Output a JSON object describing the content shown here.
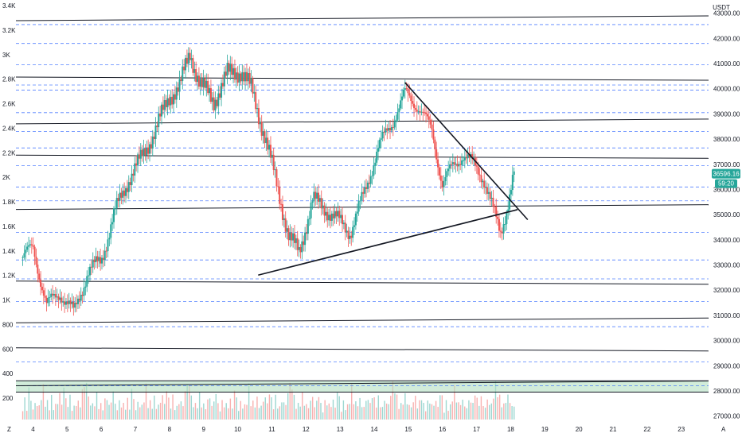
{
  "chart_data": {
    "type": "candlestick",
    "colors": {
      "up": "#26a69a",
      "down": "#ef5350",
      "accent": "#26a69a",
      "grid_dashed": "#2962ff",
      "solid_line": "#131722",
      "zone": "#b2dfc2",
      "axis_text": "#131722"
    },
    "currency_label": "USDT",
    "current_price": "36596.16",
    "countdown": "59:20",
    "left_axis": {
      "ticks": [
        "3.4K",
        "3.2K",
        "3K",
        "2.8K",
        "2.6K",
        "2.4K",
        "2.2K",
        "2K",
        "1.8K",
        "1.6K",
        "1.4K",
        "1.2K",
        "1K",
        "800",
        "600",
        "400",
        "200"
      ]
    },
    "right_axis": {
      "ticks": [
        "43000.00",
        "42000.00",
        "41000.00",
        "40000.00",
        "39000.00",
        "38000.00",
        "37000.00",
        "36000.00",
        "35000.00",
        "34000.00",
        "33000.00",
        "32000.00",
        "31000.00",
        "30000.00",
        "29000.00",
        "28000.00",
        "27000.00"
      ],
      "ylim": [
        26800,
        43400
      ]
    },
    "x_axis": {
      "ticks": [
        "4",
        "5",
        "6",
        "7",
        "8",
        "9",
        "10",
        "11",
        "12",
        "13",
        "14",
        "15",
        "16",
        "17",
        "18",
        "19",
        "20",
        "21",
        "22",
        "23"
      ]
    },
    "bottom_left_label": "Z",
    "bottom_right_label": "A",
    "horizontal_levels_solid": [
      42800,
      40400,
      38700,
      37300,
      35300,
      32300,
      30800,
      29650,
      28300
    ],
    "horizontal_levels_dashed": [
      42550,
      41800,
      40950,
      40150,
      39950,
      39050,
      38300,
      37650,
      36950,
      36100,
      35550,
      34300,
      33200,
      32450,
      31550,
      30550,
      29150,
      28200
    ],
    "zone": [
      27950,
      28400
    ],
    "trendlines": [
      {
        "from": {
          "day": 14.9,
          "price": 40250
        },
        "to": {
          "day": 18.5,
          "price": 34800
        }
      },
      {
        "from": {
          "day": 10.6,
          "price": 32600
        },
        "to": {
          "day": 18.2,
          "price": 35200
        }
      }
    ],
    "price_path": [
      {
        "day": 3.7,
        "price": 33300
      },
      {
        "day": 4.0,
        "price": 33700
      },
      {
        "day": 4.4,
        "price": 31400
      },
      {
        "day": 4.8,
        "price": 31900
      },
      {
        "day": 5.2,
        "price": 31100
      },
      {
        "day": 5.6,
        "price": 32700
      },
      {
        "day": 6.0,
        "price": 33200
      },
      {
        "day": 6.4,
        "price": 35100
      },
      {
        "day": 6.8,
        "price": 36400
      },
      {
        "day": 7.2,
        "price": 37300
      },
      {
        "day": 7.6,
        "price": 38400
      },
      {
        "day": 8.0,
        "price": 39700
      },
      {
        "day": 8.3,
        "price": 40100
      },
      {
        "day": 8.6,
        "price": 41400
      },
      {
        "day": 8.9,
        "price": 40200
      },
      {
        "day": 9.3,
        "price": 39500
      },
      {
        "day": 9.7,
        "price": 40600
      },
      {
        "day": 10.1,
        "price": 40700
      },
      {
        "day": 10.4,
        "price": 40000
      },
      {
        "day": 10.8,
        "price": 38100
      },
      {
        "day": 11.2,
        "price": 35900
      },
      {
        "day": 11.5,
        "price": 34100
      },
      {
        "day": 11.8,
        "price": 33500
      },
      {
        "day": 12.2,
        "price": 35600
      },
      {
        "day": 12.6,
        "price": 35200
      },
      {
        "day": 13.0,
        "price": 34700
      },
      {
        "day": 13.3,
        "price": 34300
      },
      {
        "day": 13.7,
        "price": 35800
      },
      {
        "day": 14.1,
        "price": 37600
      },
      {
        "day": 14.5,
        "price": 38600
      },
      {
        "day": 14.9,
        "price": 39800
      },
      {
        "day": 15.3,
        "price": 39300
      },
      {
        "day": 15.7,
        "price": 38300
      },
      {
        "day": 16.0,
        "price": 36200
      },
      {
        "day": 16.3,
        "price": 36900
      },
      {
        "day": 16.6,
        "price": 37400
      },
      {
        "day": 16.9,
        "price": 37000
      },
      {
        "day": 17.2,
        "price": 36500
      },
      {
        "day": 17.5,
        "price": 35100
      },
      {
        "day": 17.7,
        "price": 34300
      },
      {
        "day": 17.9,
        "price": 35300
      },
      {
        "day": 18.1,
        "price": 36600
      }
    ],
    "volume_profile": [
      60,
      80,
      50,
      120,
      90,
      40,
      70,
      60,
      55,
      100,
      130,
      80,
      70,
      60,
      90,
      50,
      60,
      70,
      110,
      60,
      150,
      80,
      70,
      90,
      60,
      50,
      80,
      70,
      60,
      120,
      140,
      160,
      90,
      70,
      60,
      80,
      100,
      70,
      60,
      50,
      80,
      90,
      60,
      70,
      130,
      60,
      50,
      70,
      80,
      60
    ]
  }
}
